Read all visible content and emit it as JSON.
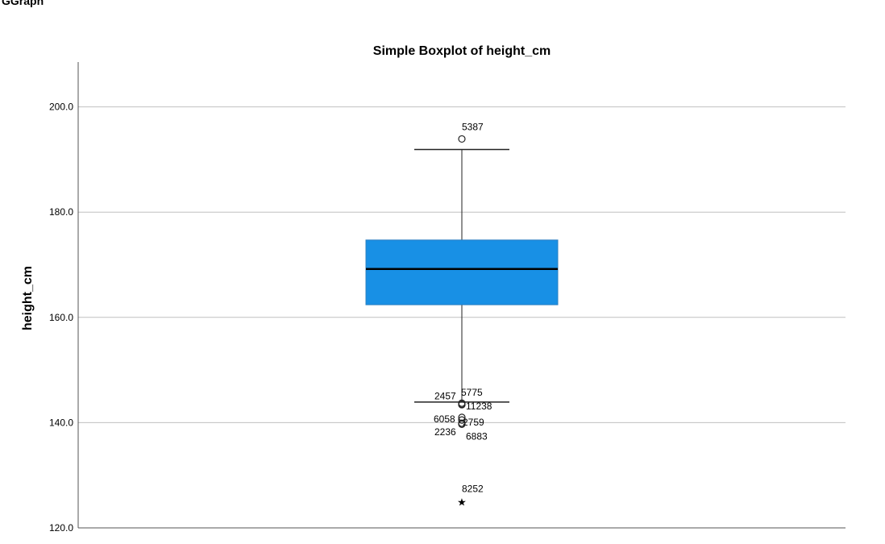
{
  "page": {
    "header": "GGraph"
  },
  "chart_data": {
    "type": "boxplot",
    "title": "Simple Boxplot of height_cm",
    "xlabel": "",
    "ylabel": "height_cm",
    "ylim": [
      120,
      208
    ],
    "yticks": [
      120,
      140,
      160,
      180,
      200
    ],
    "ytick_labels": [
      "120.0",
      "140.0",
      "160.0",
      "180.0",
      "200.0"
    ],
    "grid": true,
    "box_color": "#1890e5",
    "box": {
      "whisker_low": 143.9,
      "q1": 162.4,
      "median": 169.2,
      "q3": 174.7,
      "whisker_high": 191.9
    },
    "outliers": [
      {
        "id": "5387",
        "value": 193.9,
        "marker": "circle"
      },
      {
        "id": "2457",
        "value": 143.5,
        "marker": "circle"
      },
      {
        "id": "5775",
        "value": 143.7,
        "marker": "circle"
      },
      {
        "id": "11238",
        "value": 143.4,
        "marker": "circle"
      },
      {
        "id": "6058",
        "value": 141.0,
        "marker": "circle"
      },
      {
        "id": "2759",
        "value": 140.5,
        "marker": "circle"
      },
      {
        "id": "2236",
        "value": 139.9,
        "marker": "circle"
      },
      {
        "id": "6883",
        "value": 139.7,
        "marker": "circle"
      },
      {
        "id": "8252",
        "value": 125.0,
        "marker": "star"
      }
    ]
  }
}
